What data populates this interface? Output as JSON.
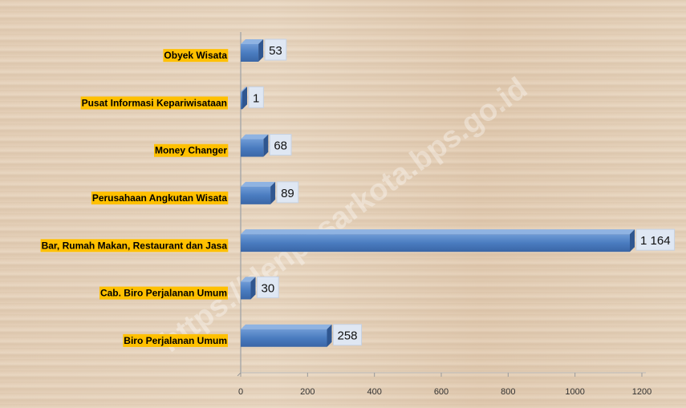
{
  "watermark": "https://denpasarkota.bps.go.id",
  "chart_data": {
    "type": "bar",
    "orientation": "horizontal",
    "categories": [
      "Obyek Wisata",
      "Pusat Informasi Kepariwisataan",
      "Money Changer",
      "Perusahaan Angkutan Wisata",
      "Bar, Rumah Makan, Restaurant dan Jasa",
      "Cab. Biro Perjalanan Umum",
      "Biro Perjalanan Umum"
    ],
    "values": [
      53,
      1,
      68,
      89,
      1164,
      30,
      258
    ],
    "value_labels": [
      "53",
      "1",
      "68",
      "89",
      "1 164",
      "30",
      "258"
    ],
    "color": "#4a7cc0",
    "xlim": [
      0,
      1200
    ],
    "xticks": [
      0,
      200,
      400,
      600,
      800,
      1000,
      1200
    ],
    "label_highlight": "#ffc000"
  }
}
